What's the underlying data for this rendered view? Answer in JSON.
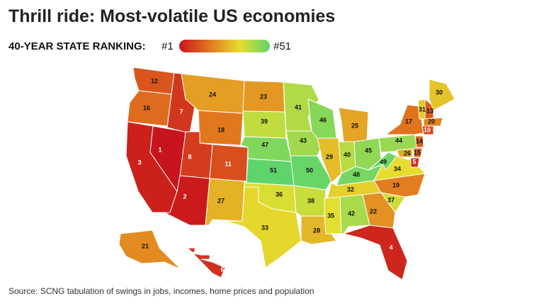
{
  "title": "Thrill ride: Most-volatile US economies",
  "legend": {
    "title": "40-YEAR STATE RANKING:",
    "low": {
      "value": 1,
      "label": "#1"
    },
    "high": {
      "value": 51,
      "label": "#51"
    },
    "colors": [
      "#c8141c",
      "#e2761e",
      "#e6df2e",
      "#5fd46c"
    ]
  },
  "ranks": [
    12,
    16,
    3,
    1,
    7,
    24,
    18,
    8,
    11,
    2,
    27,
    23,
    39,
    47,
    51,
    36,
    33,
    41,
    43,
    50,
    38,
    28,
    46,
    29,
    25,
    40,
    45,
    48,
    32,
    35,
    42,
    22,
    4,
    37,
    19,
    34,
    49,
    44,
    17,
    31,
    13,
    30,
    20,
    10,
    14,
    15,
    5,
    26,
    21,
    6
  ],
  "source": "Source: SCNG tabulation of swings in jobs, incomes, home prices and population"
}
